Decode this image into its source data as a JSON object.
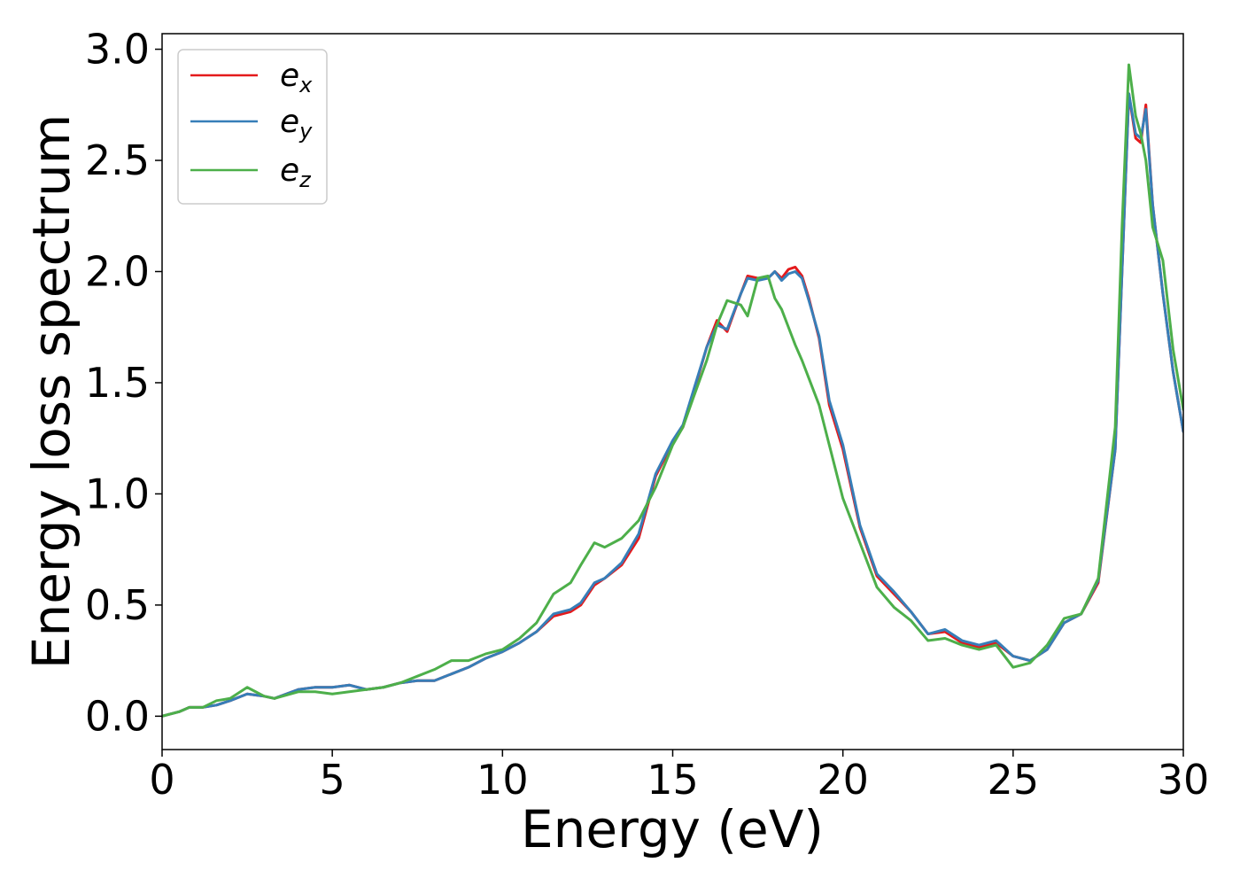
{
  "chart_data": {
    "type": "line",
    "title": "",
    "xlabel": "Energy (eV)",
    "ylabel": "Energy loss spectrum",
    "xlim": [
      0,
      30
    ],
    "ylim": [
      -0.15,
      3.07
    ],
    "xticks": [
      0,
      5,
      10,
      15,
      20,
      25,
      30
    ],
    "xtick_labels": [
      "0",
      "5",
      "10",
      "15",
      "20",
      "25",
      "30"
    ],
    "yticks": [
      0.0,
      0.5,
      1.0,
      1.5,
      2.0,
      2.5,
      3.0
    ],
    "ytick_labels": [
      "0.0",
      "0.5",
      "1.0",
      "1.5",
      "2.0",
      "2.5",
      "3.0"
    ],
    "grid": false,
    "legend_position": "top-left",
    "series": [
      {
        "name": "e",
        "subscript": "x",
        "color": "#e41a1c",
        "points": [
          [
            0,
            0.0
          ],
          [
            0.5,
            0.02
          ],
          [
            0.8,
            0.04
          ],
          [
            1.2,
            0.04
          ],
          [
            1.6,
            0.05
          ],
          [
            2,
            0.07
          ],
          [
            2.5,
            0.1
          ],
          [
            3,
            0.09
          ],
          [
            3.3,
            0.08
          ],
          [
            4,
            0.12
          ],
          [
            4.5,
            0.13
          ],
          [
            5,
            0.13
          ],
          [
            5.5,
            0.14
          ],
          [
            6,
            0.12
          ],
          [
            6.5,
            0.13
          ],
          [
            7,
            0.15
          ],
          [
            7.5,
            0.16
          ],
          [
            8,
            0.16
          ],
          [
            8.5,
            0.19
          ],
          [
            9,
            0.22
          ],
          [
            9.5,
            0.26
          ],
          [
            10,
            0.29
          ],
          [
            10.5,
            0.33
          ],
          [
            11,
            0.38
          ],
          [
            11.5,
            0.45
          ],
          [
            12,
            0.47
          ],
          [
            12.3,
            0.5
          ],
          [
            12.7,
            0.59
          ],
          [
            13,
            0.62
          ],
          [
            13.5,
            0.68
          ],
          [
            14,
            0.8
          ],
          [
            14.5,
            1.08
          ],
          [
            15,
            1.23
          ],
          [
            15.3,
            1.3
          ],
          [
            15.6,
            1.45
          ],
          [
            16,
            1.66
          ],
          [
            16.3,
            1.78
          ],
          [
            16.6,
            1.73
          ],
          [
            17,
            1.9
          ],
          [
            17.2,
            1.98
          ],
          [
            17.5,
            1.97
          ],
          [
            17.8,
            1.97
          ],
          [
            18,
            2.0
          ],
          [
            18.2,
            1.97
          ],
          [
            18.4,
            2.01
          ],
          [
            18.6,
            2.02
          ],
          [
            18.8,
            1.98
          ],
          [
            19,
            1.88
          ],
          [
            19.3,
            1.7
          ],
          [
            19.6,
            1.4
          ],
          [
            20,
            1.2
          ],
          [
            20.5,
            0.85
          ],
          [
            21,
            0.63
          ],
          [
            21.5,
            0.55
          ],
          [
            22,
            0.47
          ],
          [
            22.5,
            0.37
          ],
          [
            23,
            0.38
          ],
          [
            23.5,
            0.33
          ],
          [
            24,
            0.31
          ],
          [
            24.5,
            0.33
          ],
          [
            25,
            0.27
          ],
          [
            25.5,
            0.25
          ],
          [
            26,
            0.3
          ],
          [
            26.5,
            0.42
          ],
          [
            27,
            0.46
          ],
          [
            27.5,
            0.6
          ],
          [
            28,
            1.2
          ],
          [
            28.2,
            2.0
          ],
          [
            28.4,
            2.8
          ],
          [
            28.6,
            2.6
          ],
          [
            28.75,
            2.58
          ],
          [
            28.9,
            2.75
          ],
          [
            29.1,
            2.3
          ],
          [
            29.4,
            1.9
          ],
          [
            29.7,
            1.55
          ],
          [
            30,
            1.28
          ]
        ]
      },
      {
        "name": "e",
        "subscript": "y",
        "color": "#377eb8",
        "points": [
          [
            0,
            0.0
          ],
          [
            0.5,
            0.02
          ],
          [
            0.8,
            0.04
          ],
          [
            1.2,
            0.04
          ],
          [
            1.6,
            0.05
          ],
          [
            2,
            0.07
          ],
          [
            2.5,
            0.1
          ],
          [
            3,
            0.09
          ],
          [
            3.3,
            0.08
          ],
          [
            4,
            0.12
          ],
          [
            4.5,
            0.13
          ],
          [
            5,
            0.13
          ],
          [
            5.5,
            0.14
          ],
          [
            6,
            0.12
          ],
          [
            6.5,
            0.13
          ],
          [
            7,
            0.15
          ],
          [
            7.5,
            0.16
          ],
          [
            8,
            0.16
          ],
          [
            8.5,
            0.19
          ],
          [
            9,
            0.22
          ],
          [
            9.5,
            0.26
          ],
          [
            10,
            0.29
          ],
          [
            10.5,
            0.33
          ],
          [
            11,
            0.38
          ],
          [
            11.5,
            0.46
          ],
          [
            12,
            0.48
          ],
          [
            12.3,
            0.51
          ],
          [
            12.7,
            0.6
          ],
          [
            13,
            0.62
          ],
          [
            13.5,
            0.69
          ],
          [
            14,
            0.82
          ],
          [
            14.5,
            1.09
          ],
          [
            15,
            1.24
          ],
          [
            15.3,
            1.31
          ],
          [
            15.6,
            1.46
          ],
          [
            16,
            1.66
          ],
          [
            16.3,
            1.76
          ],
          [
            16.6,
            1.74
          ],
          [
            17,
            1.9
          ],
          [
            17.2,
            1.97
          ],
          [
            17.5,
            1.96
          ],
          [
            17.8,
            1.97
          ],
          [
            18,
            2.0
          ],
          [
            18.2,
            1.96
          ],
          [
            18.4,
            1.99
          ],
          [
            18.6,
            2.0
          ],
          [
            18.8,
            1.97
          ],
          [
            19,
            1.87
          ],
          [
            19.3,
            1.71
          ],
          [
            19.6,
            1.42
          ],
          [
            20,
            1.22
          ],
          [
            20.5,
            0.86
          ],
          [
            21,
            0.64
          ],
          [
            21.5,
            0.56
          ],
          [
            22,
            0.47
          ],
          [
            22.5,
            0.37
          ],
          [
            23,
            0.39
          ],
          [
            23.5,
            0.34
          ],
          [
            24,
            0.32
          ],
          [
            24.5,
            0.34
          ],
          [
            25,
            0.27
          ],
          [
            25.5,
            0.25
          ],
          [
            26,
            0.3
          ],
          [
            26.5,
            0.42
          ],
          [
            27,
            0.46
          ],
          [
            27.5,
            0.61
          ],
          [
            28,
            1.2
          ],
          [
            28.2,
            2.0
          ],
          [
            28.4,
            2.8
          ],
          [
            28.6,
            2.62
          ],
          [
            28.75,
            2.6
          ],
          [
            28.9,
            2.73
          ],
          [
            29.1,
            2.3
          ],
          [
            29.4,
            1.9
          ],
          [
            29.7,
            1.55
          ],
          [
            30,
            1.28
          ]
        ]
      },
      {
        "name": "e",
        "subscript": "z",
        "color": "#4daf4a",
        "points": [
          [
            0,
            0.0
          ],
          [
            0.5,
            0.02
          ],
          [
            0.8,
            0.04
          ],
          [
            1.2,
            0.04
          ],
          [
            1.6,
            0.07
          ],
          [
            2,
            0.08
          ],
          [
            2.5,
            0.13
          ],
          [
            3,
            0.09
          ],
          [
            3.3,
            0.08
          ],
          [
            4,
            0.11
          ],
          [
            4.5,
            0.11
          ],
          [
            5,
            0.1
          ],
          [
            5.5,
            0.11
          ],
          [
            6,
            0.12
          ],
          [
            6.5,
            0.13
          ],
          [
            7,
            0.15
          ],
          [
            7.5,
            0.18
          ],
          [
            8,
            0.21
          ],
          [
            8.5,
            0.25
          ],
          [
            9,
            0.25
          ],
          [
            9.5,
            0.28
          ],
          [
            10,
            0.3
          ],
          [
            10.5,
            0.35
          ],
          [
            11,
            0.42
          ],
          [
            11.5,
            0.55
          ],
          [
            12,
            0.6
          ],
          [
            12.3,
            0.68
          ],
          [
            12.7,
            0.78
          ],
          [
            13,
            0.76
          ],
          [
            13.5,
            0.8
          ],
          [
            14,
            0.88
          ],
          [
            14.5,
            1.03
          ],
          [
            15,
            1.22
          ],
          [
            15.3,
            1.3
          ],
          [
            15.6,
            1.43
          ],
          [
            16,
            1.6
          ],
          [
            16.3,
            1.76
          ],
          [
            16.6,
            1.87
          ],
          [
            17,
            1.85
          ],
          [
            17.2,
            1.8
          ],
          [
            17.5,
            1.97
          ],
          [
            17.8,
            1.98
          ],
          [
            18,
            1.88
          ],
          [
            18.2,
            1.83
          ],
          [
            18.4,
            1.75
          ],
          [
            18.6,
            1.67
          ],
          [
            18.8,
            1.6
          ],
          [
            19,
            1.52
          ],
          [
            19.3,
            1.4
          ],
          [
            19.6,
            1.22
          ],
          [
            20,
            0.98
          ],
          [
            20.5,
            0.78
          ],
          [
            21,
            0.58
          ],
          [
            21.5,
            0.49
          ],
          [
            22,
            0.43
          ],
          [
            22.5,
            0.34
          ],
          [
            23,
            0.35
          ],
          [
            23.5,
            0.32
          ],
          [
            24,
            0.3
          ],
          [
            24.5,
            0.32
          ],
          [
            25,
            0.22
          ],
          [
            25.5,
            0.24
          ],
          [
            26,
            0.32
          ],
          [
            26.5,
            0.44
          ],
          [
            27,
            0.46
          ],
          [
            27.5,
            0.62
          ],
          [
            28,
            1.3
          ],
          [
            28.2,
            2.2
          ],
          [
            28.4,
            2.93
          ],
          [
            28.6,
            2.7
          ],
          [
            28.75,
            2.62
          ],
          [
            28.9,
            2.5
          ],
          [
            29.1,
            2.2
          ],
          [
            29.4,
            2.05
          ],
          [
            29.7,
            1.65
          ],
          [
            30,
            1.38
          ]
        ]
      }
    ]
  }
}
